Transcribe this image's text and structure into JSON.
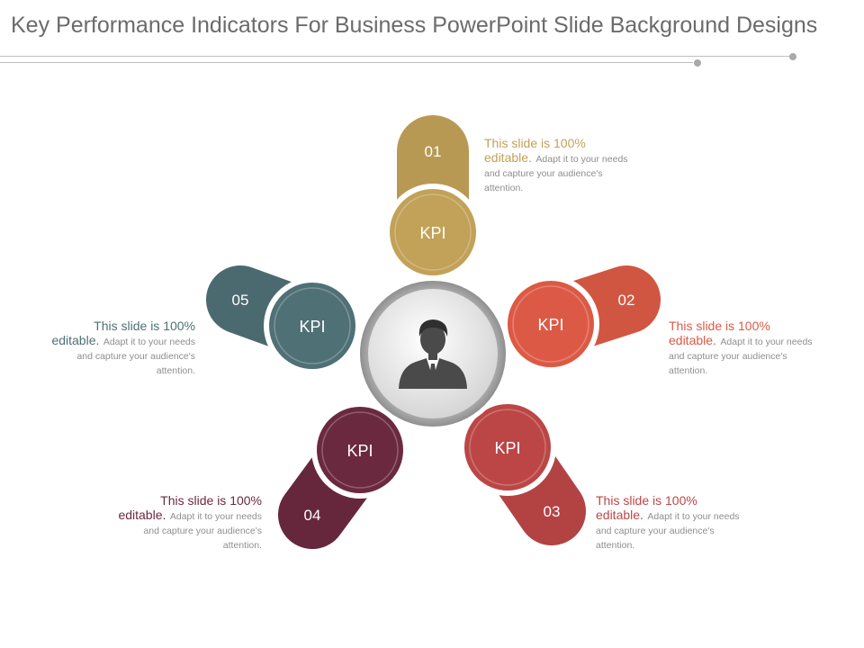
{
  "title": "Key Performance Indicators For Business PowerPoint Slide Background Designs",
  "center": {
    "icon": "businessman-icon"
  },
  "items": [
    {
      "number": "01",
      "label": "KPI",
      "color": "#c2a158",
      "text_lead": "This slide is 100% editable.",
      "text_body": "Adapt it to your needs and capture your audience's attention."
    },
    {
      "number": "02",
      "label": "KPI",
      "color": "#dc5a45",
      "text_lead": "This slide is 100% editable.",
      "text_body": "Adapt it to your needs and capture your audience's attention."
    },
    {
      "number": "03",
      "label": "KPI",
      "color": "#bc4646",
      "text_lead": "This slide is 100% editable.",
      "text_body": "Adapt it to your needs and capture your audience's attention."
    },
    {
      "number": "04",
      "label": "KPI",
      "color": "#6b2940",
      "text_lead": "This slide is 100% editable.",
      "text_body": "Adapt it to your needs and capture your audience's attention."
    },
    {
      "number": "05",
      "label": "KPI",
      "color": "#4f7075",
      "text_lead": "This slide is 100% editable.",
      "text_body": "Adapt it to your needs and capture your audience's attention."
    }
  ]
}
